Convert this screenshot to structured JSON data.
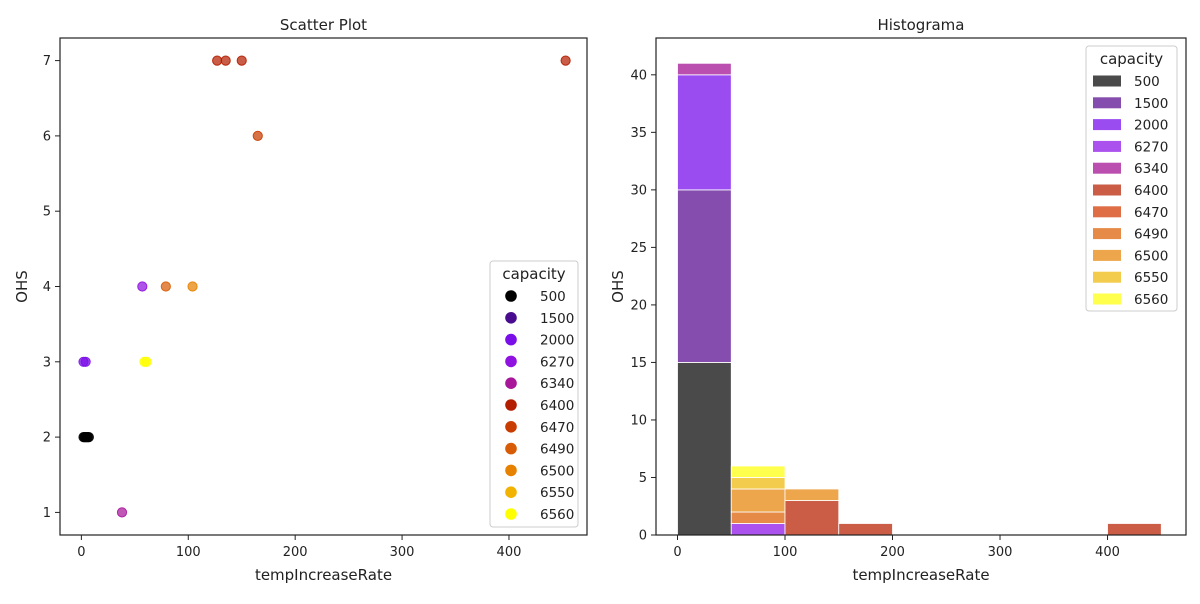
{
  "chart_data": [
    {
      "type": "scatter",
      "title": "Scatter Plot",
      "xlabel": "tempIncreaseRate",
      "ylabel": "OHS",
      "xlim": [
        -20,
        473
      ],
      "ylim": [
        0.7,
        7.3
      ],
      "xticks": [
        0,
        100,
        200,
        300,
        400
      ],
      "yticks": [
        1,
        2,
        3,
        4,
        5,
        6,
        7
      ],
      "grid": false,
      "legend": {
        "title": "capacity",
        "placement": "lower-right",
        "entries": [
          {
            "label": "500",
            "color": "#000000"
          },
          {
            "label": "1500",
            "color": "#4a0c8f"
          },
          {
            "label": "2000",
            "color": "#7a0ee8"
          },
          {
            "label": "6270",
            "color": "#8f12e0"
          },
          {
            "label": "6340",
            "color": "#a8169a"
          },
          {
            "label": "6400",
            "color": "#b41e00"
          },
          {
            "label": "6470",
            "color": "#c83c00"
          },
          {
            "label": "6490",
            "color": "#d85c05"
          },
          {
            "label": "6500",
            "color": "#e68200"
          },
          {
            "label": "6550",
            "color": "#f2b300"
          },
          {
            "label": "6560",
            "color": "#ffff00"
          }
        ]
      },
      "points": [
        {
          "x": 2,
          "y": 2,
          "capacity": "500"
        },
        {
          "x": 3,
          "y": 2,
          "capacity": "500"
        },
        {
          "x": 4,
          "y": 2,
          "capacity": "500"
        },
        {
          "x": 5,
          "y": 2,
          "capacity": "500"
        },
        {
          "x": 6,
          "y": 2,
          "capacity": "500"
        },
        {
          "x": 7,
          "y": 2,
          "capacity": "500"
        },
        {
          "x": 2,
          "y": 3,
          "capacity": "2000"
        },
        {
          "x": 4,
          "y": 3,
          "capacity": "2000"
        },
        {
          "x": 57,
          "y": 4,
          "capacity": "6270"
        },
        {
          "x": 38,
          "y": 1,
          "capacity": "6340"
        },
        {
          "x": 127,
          "y": 7,
          "capacity": "6400"
        },
        {
          "x": 135,
          "y": 7,
          "capacity": "6400"
        },
        {
          "x": 150,
          "y": 7,
          "capacity": "6400"
        },
        {
          "x": 453,
          "y": 7,
          "capacity": "6400"
        },
        {
          "x": 165,
          "y": 6,
          "capacity": "6470"
        },
        {
          "x": 79,
          "y": 4,
          "capacity": "6490"
        },
        {
          "x": 104,
          "y": 4,
          "capacity": "6500"
        },
        {
          "x": 59,
          "y": 3,
          "capacity": "6560"
        },
        {
          "x": 61,
          "y": 3,
          "capacity": "6560"
        }
      ]
    },
    {
      "type": "bar",
      "subtype": "stacked-histogram",
      "title": "Histograma",
      "xlabel": "tempIncreaseRate",
      "ylabel": "OHS",
      "xlim": [
        -20,
        473
      ],
      "ylim": [
        0,
        43.2
      ],
      "xticks": [
        0,
        100,
        200,
        300,
        400
      ],
      "yticks": [
        0,
        5,
        10,
        15,
        20,
        25,
        30,
        35,
        40
      ],
      "grid": false,
      "legend": {
        "title": "capacity",
        "placement": "top-right",
        "entries": [
          {
            "label": "500",
            "color": "#4a4a4a"
          },
          {
            "label": "1500",
            "color": "#844dae"
          },
          {
            "label": "2000",
            "color": "#9b4cf1"
          },
          {
            "label": "6270",
            "color": "#ab52ee"
          },
          {
            "label": "6340",
            "color": "#bb4fb0"
          },
          {
            "label": "6400",
            "color": "#cb5c45"
          },
          {
            "label": "6470",
            "color": "#df6d45"
          },
          {
            "label": "6490",
            "color": "#e68a47"
          },
          {
            "label": "6500",
            "color": "#eda64b"
          },
          {
            "label": "6550",
            "color": "#f3cb4d"
          },
          {
            "label": "6560",
            "color": "#ffff4d"
          }
        ]
      },
      "bins": [
        {
          "x0": 0,
          "x1": 50,
          "segments": [
            {
              "capacity": "500",
              "value": 15
            },
            {
              "capacity": "1500",
              "value": 15
            },
            {
              "capacity": "2000",
              "value": 10
            },
            {
              "capacity": "6340",
              "value": 1
            }
          ]
        },
        {
          "x0": 50,
          "x1": 100,
          "segments": [
            {
              "capacity": "6270",
              "value": 1
            },
            {
              "capacity": "6490",
              "value": 1
            },
            {
              "capacity": "6500",
              "value": 2
            },
            {
              "capacity": "6550",
              "value": 1
            },
            {
              "capacity": "6560",
              "value": 1
            }
          ]
        },
        {
          "x0": 100,
          "x1": 150,
          "segments": [
            {
              "capacity": "6400",
              "value": 3
            },
            {
              "capacity": "6500",
              "value": 1
            }
          ]
        },
        {
          "x0": 150,
          "x1": 200,
          "segments": [
            {
              "capacity": "6400",
              "value": 1
            }
          ]
        },
        {
          "x0": 400,
          "x1": 450,
          "segments": [
            {
              "capacity": "6400",
              "value": 1
            }
          ]
        }
      ]
    }
  ]
}
